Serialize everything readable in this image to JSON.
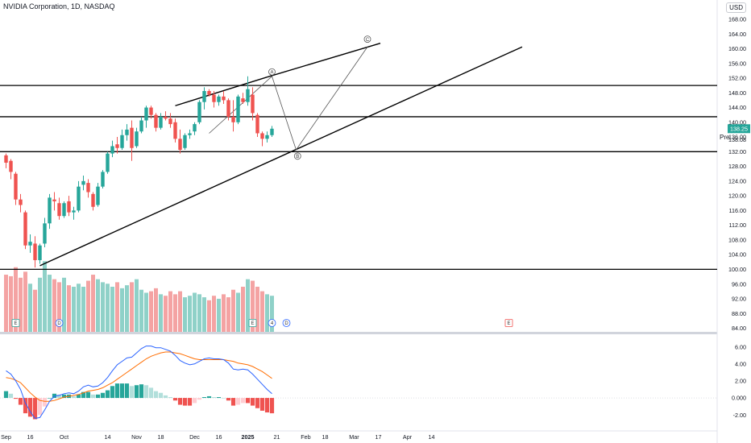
{
  "header": {
    "ticker": "NVIDIA Corporation, 1D, NASDAQ",
    "currency": "USD",
    "pre_label": "Pre"
  },
  "colors": {
    "up": "#26a69a",
    "down": "#ef5350",
    "vol_up": "#8fd1c8",
    "vol_down": "#f4a3a3",
    "macd": "#2962ff",
    "signal": "#ff6d00",
    "hist_up_strong": "#26a69a",
    "hist_up_weak": "#b2dfdb",
    "hist_down_strong": "#ef5350",
    "hist_down_weak": "#ffcdd2",
    "grid": "#e0e3eb",
    "text": "#131722"
  },
  "chart_data": {
    "type": "candlestick",
    "price_axis": {
      "ticks": [
        "168.00",
        "164.00",
        "160.00",
        "156.00",
        "152.00",
        "148.00",
        "144.00",
        "140.00",
        "136.00",
        "132.00",
        "128.00",
        "124.00",
        "120.00",
        "116.00",
        "112.00",
        "108.00",
        "104.00",
        "100.00",
        "96.00",
        "92.00",
        "88.00",
        "84.00"
      ],
      "tick_values": [
        168,
        164,
        160,
        156,
        152,
        148,
        144,
        140,
        136,
        132,
        128,
        124,
        120,
        116,
        112,
        108,
        104,
        100,
        96,
        92,
        88,
        84
      ],
      "range": [
        83,
        171.5
      ],
      "last_price_label": "138.25",
      "last_price": 138.25,
      "pre_price_label": "138.08",
      "pre_price": 138.08
    },
    "date_axis": {
      "labels": [
        "Sep",
        "16",
        "Oct",
        "14",
        "Nov",
        "18",
        "Dec",
        "16",
        "2025",
        "21",
        "Feb",
        "18",
        "Mar",
        "17",
        "Apr",
        "14"
      ],
      "label_indices": [
        0,
        5,
        12,
        21,
        27,
        32,
        39,
        44,
        50,
        56,
        62,
        66,
        72,
        77,
        83,
        88
      ],
      "bold_labels": [
        "2025"
      ]
    },
    "candles": [
      {
        "o": 131.0,
        "h": 131.5,
        "l": 127.5,
        "c": 129.0
      },
      {
        "o": 129.5,
        "h": 130.0,
        "l": 124.5,
        "c": 126.5
      },
      {
        "o": 126.0,
        "h": 126.5,
        "l": 117.5,
        "c": 119.0
      },
      {
        "o": 119.0,
        "h": 120.5,
        "l": 115.5,
        "c": 117.5
      },
      {
        "o": 115.5,
        "h": 116.0,
        "l": 105.5,
        "c": 106.5
      },
      {
        "o": 106.5,
        "h": 109.5,
        "l": 104.5,
        "c": 107.5
      },
      {
        "o": 107.0,
        "h": 109.0,
        "l": 100.5,
        "c": 102.5
      },
      {
        "o": 102.5,
        "h": 107.0,
        "l": 101.5,
        "c": 106.5
      },
      {
        "o": 107.0,
        "h": 114.0,
        "l": 106.0,
        "c": 112.5
      },
      {
        "o": 112.5,
        "h": 120.5,
        "l": 111.0,
        "c": 119.5
      },
      {
        "o": 119.0,
        "h": 121.0,
        "l": 116.0,
        "c": 118.5
      },
      {
        "o": 118.0,
        "h": 119.5,
        "l": 113.5,
        "c": 114.5
      },
      {
        "o": 114.5,
        "h": 118.5,
        "l": 114.0,
        "c": 118.0
      },
      {
        "o": 118.5,
        "h": 120.0,
        "l": 114.5,
        "c": 115.5
      },
      {
        "o": 115.5,
        "h": 117.0,
        "l": 113.5,
        "c": 116.0
      },
      {
        "o": 116.0,
        "h": 124.0,
        "l": 115.5,
        "c": 122.5
      },
      {
        "o": 123.0,
        "h": 125.5,
        "l": 121.5,
        "c": 124.0
      },
      {
        "o": 123.5,
        "h": 124.5,
        "l": 119.5,
        "c": 121.0
      },
      {
        "o": 120.5,
        "h": 121.0,
        "l": 116.0,
        "c": 117.0
      },
      {
        "o": 117.5,
        "h": 123.5,
        "l": 117.0,
        "c": 122.5
      },
      {
        "o": 122.5,
        "h": 127.0,
        "l": 122.0,
        "c": 126.5
      },
      {
        "o": 126.5,
        "h": 132.0,
        "l": 126.0,
        "c": 131.5
      },
      {
        "o": 131.5,
        "h": 135.0,
        "l": 130.5,
        "c": 133.5
      },
      {
        "o": 134.0,
        "h": 136.0,
        "l": 131.5,
        "c": 133.0
      },
      {
        "o": 133.0,
        "h": 138.0,
        "l": 132.5,
        "c": 136.5
      },
      {
        "o": 136.5,
        "h": 139.5,
        "l": 135.0,
        "c": 138.0
      },
      {
        "o": 138.5,
        "h": 140.5,
        "l": 129.5,
        "c": 133.0
      },
      {
        "o": 133.5,
        "h": 138.5,
        "l": 133.0,
        "c": 137.5
      },
      {
        "o": 137.5,
        "h": 141.5,
        "l": 137.0,
        "c": 140.5
      },
      {
        "o": 140.5,
        "h": 144.5,
        "l": 138.5,
        "c": 144.0
      },
      {
        "o": 144.0,
        "h": 144.5,
        "l": 141.0,
        "c": 142.0
      },
      {
        "o": 142.0,
        "h": 142.5,
        "l": 137.5,
        "c": 138.5
      },
      {
        "o": 138.5,
        "h": 142.5,
        "l": 138.0,
        "c": 141.5
      },
      {
        "o": 141.5,
        "h": 143.0,
        "l": 140.5,
        "c": 141.0
      },
      {
        "o": 141.0,
        "h": 142.5,
        "l": 138.5,
        "c": 139.5
      },
      {
        "o": 140.0,
        "h": 141.0,
        "l": 134.5,
        "c": 135.5
      },
      {
        "o": 135.5,
        "h": 138.0,
        "l": 131.5,
        "c": 132.5
      },
      {
        "o": 133.0,
        "h": 137.0,
        "l": 132.5,
        "c": 136.5
      },
      {
        "o": 136.5,
        "h": 138.0,
        "l": 135.5,
        "c": 137.0
      },
      {
        "o": 137.5,
        "h": 140.0,
        "l": 136.5,
        "c": 139.5
      },
      {
        "o": 140.0,
        "h": 146.0,
        "l": 139.5,
        "c": 145.5
      },
      {
        "o": 145.5,
        "h": 149.5,
        "l": 143.5,
        "c": 148.5
      },
      {
        "o": 148.5,
        "h": 149.0,
        "l": 147.0,
        "c": 147.5
      },
      {
        "o": 147.5,
        "h": 148.5,
        "l": 144.0,
        "c": 145.5
      },
      {
        "o": 145.5,
        "h": 147.5,
        "l": 144.5,
        "c": 147.0
      },
      {
        "o": 147.0,
        "h": 148.5,
        "l": 145.0,
        "c": 146.0
      },
      {
        "o": 146.0,
        "h": 146.5,
        "l": 140.5,
        "c": 141.5
      },
      {
        "o": 141.5,
        "h": 146.0,
        "l": 137.5,
        "c": 140.0
      },
      {
        "o": 140.0,
        "h": 147.5,
        "l": 139.5,
        "c": 147.0
      },
      {
        "o": 146.5,
        "h": 148.0,
        "l": 145.0,
        "c": 145.5
      },
      {
        "o": 145.5,
        "h": 152.5,
        "l": 144.5,
        "c": 149.0
      },
      {
        "o": 147.5,
        "h": 149.5,
        "l": 140.5,
        "c": 142.5
      },
      {
        "o": 142.0,
        "h": 142.5,
        "l": 136.0,
        "c": 137.0
      },
      {
        "o": 137.0,
        "h": 137.5,
        "l": 133.5,
        "c": 135.5
      },
      {
        "o": 135.5,
        "h": 137.5,
        "l": 134.5,
        "c": 136.5
      },
      {
        "o": 136.5,
        "h": 139.0,
        "l": 136.0,
        "c": 138.25
      }
    ],
    "volume": {
      "values": [
        380,
        370,
        430,
        360,
        400,
        320,
        280,
        360,
        470,
        380,
        350,
        330,
        360,
        310,
        300,
        320,
        300,
        340,
        380,
        350,
        330,
        320,
        300,
        330,
        290,
        310,
        330,
        350,
        280,
        260,
        270,
        290,
        250,
        240,
        270,
        250,
        270,
        230,
        240,
        260,
        250,
        230,
        210,
        240,
        220,
        250,
        230,
        280,
        260,
        300,
        350,
        340,
        300,
        270,
        250,
        240
      ],
      "range": [
        0,
        600
      ]
    },
    "macd": {
      "axis_ticks": [
        "6.00",
        "4.00",
        "2.00",
        "0.000",
        "-2.00"
      ],
      "axis_values": [
        6,
        4,
        2,
        0,
        -2
      ],
      "range": [
        -3.4,
        7.2
      ],
      "macd_line": [
        3.2,
        2.8,
        2.0,
        1.0,
        -0.6,
        -1.6,
        -2.4,
        -2.3,
        -1.4,
        -0.4,
        0.2,
        0.3,
        0.5,
        0.6,
        0.5,
        0.8,
        1.3,
        1.5,
        1.3,
        1.4,
        1.8,
        2.4,
        3.2,
        3.9,
        4.3,
        4.7,
        4.8,
        5.3,
        5.8,
        6.1,
        6.1,
        5.9,
        5.9,
        5.7,
        5.5,
        5.0,
        4.4,
        4.1,
        3.9,
        4.0,
        4.3,
        4.6,
        4.7,
        4.6,
        4.6,
        4.5,
        4.1,
        3.4,
        3.3,
        3.4,
        3.3,
        2.8,
        2.2,
        1.6,
        1.0,
        0.5
      ],
      "signal_line": [
        2.4,
        2.3,
        2.1,
        1.8,
        1.2,
        0.6,
        0.1,
        -0.3,
        -0.4,
        -0.4,
        -0.3,
        -0.1,
        0.1,
        0.2,
        0.3,
        0.4,
        0.6,
        0.8,
        0.9,
        1.0,
        1.2,
        1.5,
        1.8,
        2.2,
        2.6,
        3.0,
        3.4,
        3.8,
        4.2,
        4.6,
        4.9,
        5.1,
        5.3,
        5.4,
        5.4,
        5.3,
        5.2,
        5.0,
        4.8,
        4.6,
        4.5,
        4.5,
        4.5,
        4.5,
        4.5,
        4.5,
        4.4,
        4.3,
        4.1,
        4.0,
        3.9,
        3.7,
        3.4,
        3.1,
        2.7,
        2.3
      ],
      "histogram": [
        0.8,
        0.5,
        -0.1,
        -0.8,
        -1.8,
        -2.2,
        -2.5,
        -2.0,
        -1.0,
        0.0,
        0.5,
        0.4,
        0.4,
        0.4,
        0.2,
        0.4,
        0.7,
        0.7,
        0.4,
        0.4,
        0.6,
        0.9,
        1.4,
        1.7,
        1.7,
        1.7,
        1.4,
        1.5,
        1.6,
        1.5,
        1.2,
        0.8,
        0.6,
        0.3,
        0.1,
        -0.3,
        -0.8,
        -0.9,
        -0.9,
        -0.6,
        -0.2,
        0.1,
        0.2,
        0.1,
        0.1,
        0.0,
        -0.3,
        -0.9,
        -0.8,
        -0.6,
        -0.6,
        -0.9,
        -1.2,
        -1.5,
        -1.7,
        -1.8
      ]
    },
    "drawings": {
      "horizontal_levels": [
        150.0,
        141.5,
        132.0,
        100.0
      ],
      "wave_labels": [
        "A",
        "B",
        "C"
      ],
      "event_markers": [
        {
          "label": "E",
          "index": 2
        },
        {
          "label": "D",
          "index": 11
        },
        {
          "label": "E",
          "index": 51
        },
        {
          "label": "4",
          "index": 55
        },
        {
          "label": "D",
          "index": 58
        },
        {
          "label": "E",
          "index": 104
        }
      ]
    }
  }
}
